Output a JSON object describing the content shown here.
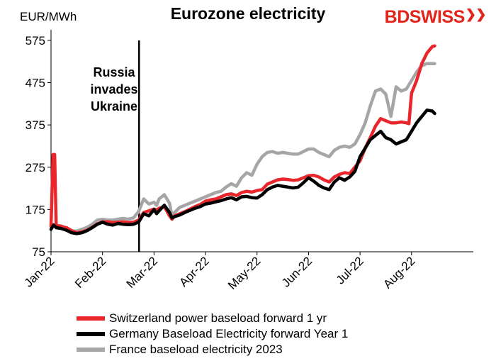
{
  "chart_data": {
    "type": "line",
    "title": "Eurozone electricity",
    "ylabel": "EUR/MWh",
    "ylim": [
      75,
      600
    ],
    "yticks": [
      75,
      175,
      275,
      375,
      475,
      575
    ],
    "xlim": [
      0,
      8.2
    ],
    "xticks": [
      {
        "label": "Jan-22",
        "value": 0
      },
      {
        "label": "Feb-22",
        "value": 1
      },
      {
        "label": "Mar-22",
        "value": 2
      },
      {
        "label": "Apr-22",
        "value": 3
      },
      {
        "label": "May-22",
        "value": 4
      },
      {
        "label": "Jun-22",
        "value": 5
      },
      {
        "label": "Jul-22",
        "value": 6
      },
      {
        "label": "Aug-22",
        "value": 7
      }
    ],
    "grid": false,
    "legend_position": "bottom",
    "annotation": {
      "text_lines": [
        "Russia",
        "invades",
        "Ukraine"
      ],
      "x": 1.71
    },
    "series": [
      {
        "name": "Switzerland power baseload forward 1 yr",
        "color": "#e8262b",
        "points": [
          [
            0,
            135
          ],
          [
            0.04,
            305
          ],
          [
            0.07,
            305
          ],
          [
            0.1,
            138
          ],
          [
            0.2,
            135
          ],
          [
            0.3,
            132
          ],
          [
            0.4,
            125
          ],
          [
            0.5,
            120
          ],
          [
            0.6,
            122
          ],
          [
            0.7,
            126
          ],
          [
            0.8,
            133
          ],
          [
            0.9,
            141
          ],
          [
            1,
            146
          ],
          [
            1.1,
            146
          ],
          [
            1.2,
            144
          ],
          [
            1.3,
            145
          ],
          [
            1.4,
            146
          ],
          [
            1.5,
            144
          ],
          [
            1.6,
            145
          ],
          [
            1.7,
            150
          ],
          [
            1.8,
            168
          ],
          [
            1.9,
            172
          ],
          [
            2,
            176
          ],
          [
            2.05,
            174
          ],
          [
            2.1,
            178
          ],
          [
            2.2,
            182
          ],
          [
            2.3,
            160
          ],
          [
            2.35,
            152
          ],
          [
            2.4,
            160
          ],
          [
            2.5,
            165
          ],
          [
            2.6,
            170
          ],
          [
            2.7,
            176
          ],
          [
            2.8,
            182
          ],
          [
            2.9,
            187
          ],
          [
            3,
            195
          ],
          [
            3.1,
            198
          ],
          [
            3.2,
            200
          ],
          [
            3.3,
            205
          ],
          [
            3.4,
            210
          ],
          [
            3.5,
            212
          ],
          [
            3.6,
            208
          ],
          [
            3.7,
            215
          ],
          [
            3.8,
            218
          ],
          [
            3.9,
            216
          ],
          [
            4,
            220
          ],
          [
            4.1,
            222
          ],
          [
            4.2,
            235
          ],
          [
            4.3,
            240
          ],
          [
            4.4,
            245
          ],
          [
            4.5,
            247
          ],
          [
            4.6,
            246
          ],
          [
            4.7,
            244
          ],
          [
            4.8,
            245
          ],
          [
            4.9,
            250
          ],
          [
            5,
            255
          ],
          [
            5.1,
            256
          ],
          [
            5.2,
            252
          ],
          [
            5.3,
            245
          ],
          [
            5.4,
            240
          ],
          [
            5.5,
            252
          ],
          [
            5.6,
            258
          ],
          [
            5.7,
            262
          ],
          [
            5.8,
            260
          ],
          [
            5.9,
            275
          ],
          [
            6,
            290
          ],
          [
            6.1,
            320
          ],
          [
            6.2,
            345
          ],
          [
            6.3,
            372
          ],
          [
            6.4,
            390
          ],
          [
            6.5,
            385
          ],
          [
            6.6,
            380
          ],
          [
            6.7,
            380
          ],
          [
            6.8,
            382
          ],
          [
            6.9,
            380
          ],
          [
            6.95,
            378
          ],
          [
            7,
            450
          ],
          [
            7.1,
            480
          ],
          [
            7.2,
            520
          ],
          [
            7.3,
            545
          ],
          [
            7.4,
            560
          ],
          [
            7.45,
            562
          ]
        ]
      },
      {
        "name": "Germany Baseload Electricity forward Year 1",
        "color": "#000000",
        "points": [
          [
            0,
            128
          ],
          [
            0.05,
            138
          ],
          [
            0.1,
            132
          ],
          [
            0.2,
            130
          ],
          [
            0.3,
            126
          ],
          [
            0.4,
            120
          ],
          [
            0.5,
            118
          ],
          [
            0.6,
            120
          ],
          [
            0.7,
            125
          ],
          [
            0.8,
            132
          ],
          [
            0.9,
            140
          ],
          [
            1,
            145
          ],
          [
            1.1,
            140
          ],
          [
            1.2,
            138
          ],
          [
            1.3,
            142
          ],
          [
            1.4,
            140
          ],
          [
            1.5,
            139
          ],
          [
            1.6,
            140
          ],
          [
            1.7,
            145
          ],
          [
            1.8,
            165
          ],
          [
            1.9,
            160
          ],
          [
            2,
            175
          ],
          [
            2.05,
            165
          ],
          [
            2.1,
            172
          ],
          [
            2.2,
            185
          ],
          [
            2.3,
            168
          ],
          [
            2.35,
            155
          ],
          [
            2.4,
            158
          ],
          [
            2.5,
            162
          ],
          [
            2.6,
            168
          ],
          [
            2.7,
            173
          ],
          [
            2.8,
            178
          ],
          [
            2.9,
            182
          ],
          [
            3,
            188
          ],
          [
            3.1,
            190
          ],
          [
            3.2,
            193
          ],
          [
            3.3,
            196
          ],
          [
            3.4,
            200
          ],
          [
            3.5,
            203
          ],
          [
            3.6,
            198
          ],
          [
            3.7,
            205
          ],
          [
            3.8,
            206
          ],
          [
            3.9,
            203
          ],
          [
            4,
            202
          ],
          [
            4.1,
            210
          ],
          [
            4.2,
            222
          ],
          [
            4.3,
            228
          ],
          [
            4.4,
            232
          ],
          [
            4.5,
            230
          ],
          [
            4.6,
            228
          ],
          [
            4.7,
            226
          ],
          [
            4.8,
            228
          ],
          [
            4.9,
            238
          ],
          [
            5,
            250
          ],
          [
            5.1,
            242
          ],
          [
            5.2,
            232
          ],
          [
            5.3,
            226
          ],
          [
            5.4,
            222
          ],
          [
            5.5,
            240
          ],
          [
            5.6,
            250
          ],
          [
            5.7,
            244
          ],
          [
            5.8,
            252
          ],
          [
            5.9,
            265
          ],
          [
            6,
            300
          ],
          [
            6.1,
            320
          ],
          [
            6.2,
            340
          ],
          [
            6.3,
            350
          ],
          [
            6.4,
            360
          ],
          [
            6.5,
            345
          ],
          [
            6.6,
            340
          ],
          [
            6.7,
            330
          ],
          [
            6.8,
            335
          ],
          [
            6.9,
            340
          ],
          [
            7,
            360
          ],
          [
            7.1,
            380
          ],
          [
            7.2,
            395
          ],
          [
            7.3,
            410
          ],
          [
            7.4,
            408
          ],
          [
            7.45,
            402
          ]
        ]
      },
      {
        "name": "France baseload electricity 2023",
        "color": "#a6a6a6",
        "points": [
          [
            0,
            138
          ],
          [
            0.05,
            140
          ],
          [
            0.1,
            137
          ],
          [
            0.2,
            136
          ],
          [
            0.3,
            130
          ],
          [
            0.4,
            124
          ],
          [
            0.5,
            124
          ],
          [
            0.6,
            128
          ],
          [
            0.7,
            133
          ],
          [
            0.8,
            140
          ],
          [
            0.9,
            150
          ],
          [
            1,
            152
          ],
          [
            1.1,
            150
          ],
          [
            1.2,
            150
          ],
          [
            1.3,
            152
          ],
          [
            1.4,
            154
          ],
          [
            1.5,
            152
          ],
          [
            1.6,
            155
          ],
          [
            1.7,
            170
          ],
          [
            1.8,
            200
          ],
          [
            1.9,
            188
          ],
          [
            2,
            192
          ],
          [
            2.05,
            185
          ],
          [
            2.1,
            200
          ],
          [
            2.2,
            210
          ],
          [
            2.3,
            190
          ],
          [
            2.35,
            160
          ],
          [
            2.4,
            168
          ],
          [
            2.5,
            180
          ],
          [
            2.6,
            185
          ],
          [
            2.7,
            190
          ],
          [
            2.8,
            195
          ],
          [
            2.9,
            200
          ],
          [
            3,
            205
          ],
          [
            3.1,
            210
          ],
          [
            3.2,
            215
          ],
          [
            3.3,
            218
          ],
          [
            3.4,
            228
          ],
          [
            3.5,
            236
          ],
          [
            3.6,
            230
          ],
          [
            3.7,
            250
          ],
          [
            3.8,
            262
          ],
          [
            3.9,
            256
          ],
          [
            4,
            282
          ],
          [
            4.1,
            300
          ],
          [
            4.2,
            310
          ],
          [
            4.3,
            312
          ],
          [
            4.4,
            308
          ],
          [
            4.5,
            310
          ],
          [
            4.6,
            308
          ],
          [
            4.7,
            306
          ],
          [
            4.8,
            306
          ],
          [
            4.9,
            312
          ],
          [
            5,
            318
          ],
          [
            5.1,
            318
          ],
          [
            5.2,
            310
          ],
          [
            5.3,
            305
          ],
          [
            5.4,
            300
          ],
          [
            5.5,
            315
          ],
          [
            5.6,
            322
          ],
          [
            5.7,
            325
          ],
          [
            5.8,
            322
          ],
          [
            5.9,
            330
          ],
          [
            6,
            352
          ],
          [
            6.1,
            380
          ],
          [
            6.2,
            420
          ],
          [
            6.3,
            455
          ],
          [
            6.4,
            460
          ],
          [
            6.5,
            448
          ],
          [
            6.6,
            395
          ],
          [
            6.7,
            465
          ],
          [
            6.8,
            455
          ],
          [
            6.9,
            460
          ],
          [
            7,
            480
          ],
          [
            7.1,
            500
          ],
          [
            7.2,
            515
          ],
          [
            7.3,
            520
          ],
          [
            7.4,
            520
          ],
          [
            7.45,
            520
          ]
        ]
      }
    ]
  },
  "logo": {
    "text_bd": "BD",
    "text_swiss": "SWISS",
    "chevrons": "❯❯"
  }
}
